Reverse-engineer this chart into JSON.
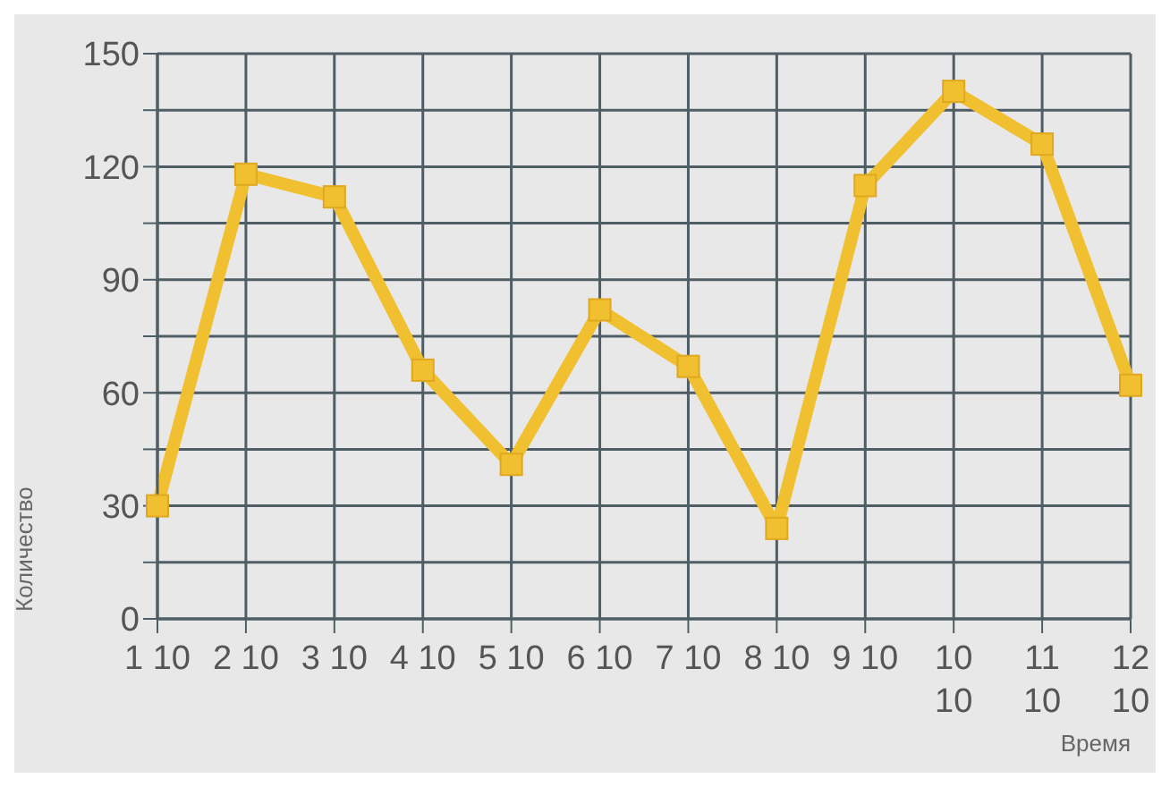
{
  "chart_data": {
    "type": "line",
    "xlabel": "Время",
    "ylabel": "Количество",
    "categories": [
      "1 10",
      "2 10",
      "3 10",
      "4 10",
      "5 10",
      "6 10",
      "7 10",
      "8 10",
      "9 10",
      "10 10",
      "11 10",
      "12 10"
    ],
    "series": [
      {
        "color": "#f0c030",
        "values": [
          30,
          118,
          112,
          66,
          41,
          82,
          67,
          24,
          115,
          140,
          126,
          62
        ]
      }
    ],
    "ylim": [
      0,
      150
    ],
    "yticks": [
      0,
      {
        "value": 15,
        "label": null
      },
      30,
      {
        "value": 45,
        "label": null
      },
      60,
      {
        "value": 75,
        "label": null
      },
      90,
      {
        "value": 105,
        "label": null
      },
      120,
      {
        "value": 135,
        "label": null
      },
      150
    ],
    "grid": true,
    "marker": "square",
    "line_style": "solid"
  }
}
